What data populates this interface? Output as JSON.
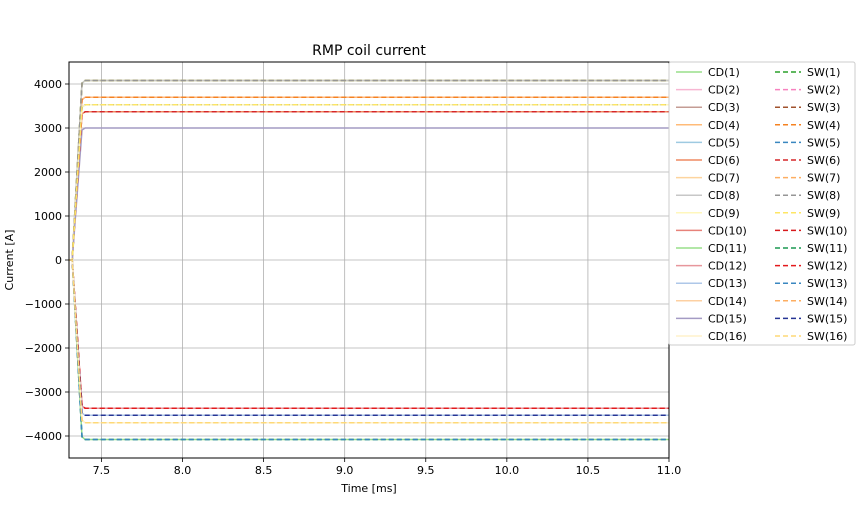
{
  "chart_data": {
    "type": "line",
    "title": "RMP coil current",
    "xlabel": "Time [ms]",
    "ylabel": "Current [A]",
    "xlim": [
      7.3,
      11.0
    ],
    "ylim": [
      -4500,
      4500
    ],
    "xticks": [
      7.5,
      8.0,
      8.5,
      9.0,
      9.5,
      10.0,
      10.5,
      11.0
    ],
    "yticks": [
      -4000,
      -3000,
      -2000,
      -1000,
      0,
      1000,
      2000,
      3000,
      4000
    ],
    "grid": true,
    "legend_position": "right, outside plot, 2 columns",
    "series": [
      {
        "name": "CD(1)",
        "style": "solid",
        "color": "#98df8a",
        "plateau": 4080
      },
      {
        "name": "CD(2)",
        "style": "solid",
        "color": "#f7b6d2",
        "plateau": 3700
      },
      {
        "name": "CD(3)",
        "style": "solid",
        "color": "#c49c94",
        "plateau": 3530
      },
      {
        "name": "CD(4)",
        "style": "solid",
        "color": "#ffbb78",
        "plateau": 3700
      },
      {
        "name": "CD(5)",
        "style": "solid",
        "color": "#9ecae1",
        "plateau": 3530
      },
      {
        "name": "CD(6)",
        "style": "solid",
        "color": "#ef8a62",
        "plateau": 3370
      },
      {
        "name": "CD(7)",
        "style": "solid",
        "color": "#fdd49e",
        "plateau": 4080
      },
      {
        "name": "CD(8)",
        "style": "solid",
        "color": "#c7c7c7",
        "plateau": 4080
      },
      {
        "name": "CD(9)",
        "style": "solid",
        "color": "#fff7bc",
        "plateau": 3530
      },
      {
        "name": "CD(10)",
        "style": "solid",
        "color": "#e7827a",
        "plateau": -3370
      },
      {
        "name": "CD(11)",
        "style": "solid",
        "color": "#98df8a",
        "plateau": -4080
      },
      {
        "name": "CD(12)",
        "style": "solid",
        "color": "#e7969c",
        "plateau": -3370
      },
      {
        "name": "CD(13)",
        "style": "solid",
        "color": "#aec7e8",
        "plateau": -3530
      },
      {
        "name": "CD(14)",
        "style": "solid",
        "color": "#fdd0a2",
        "plateau": -3700
      },
      {
        "name": "CD(15)",
        "style": "solid",
        "color": "#a49bc4",
        "plateau": 3000
      },
      {
        "name": "CD(16)",
        "style": "solid",
        "color": "#fff2cc",
        "plateau": -3700
      },
      {
        "name": "SW(1)",
        "style": "dashed",
        "color": "#2ca02c",
        "plateau": 4080
      },
      {
        "name": "SW(2)",
        "style": "dashed",
        "color": "#f781bf",
        "plateau": 3700
      },
      {
        "name": "SW(3)",
        "style": "dashed",
        "color": "#a0522d",
        "plateau": 3530
      },
      {
        "name": "SW(4)",
        "style": "dashed",
        "color": "#f58220",
        "plateau": 3700
      },
      {
        "name": "SW(5)",
        "style": "dashed",
        "color": "#3a87c0",
        "plateau": 3530
      },
      {
        "name": "SW(6)",
        "style": "dashed",
        "color": "#d62728",
        "plateau": 3370
      },
      {
        "name": "SW(7)",
        "style": "dashed",
        "color": "#fdae61",
        "plateau": 4080
      },
      {
        "name": "SW(8)",
        "style": "dashed",
        "color": "#969696",
        "plateau": 4080
      },
      {
        "name": "SW(9)",
        "style": "dashed",
        "color": "#fee664",
        "plateau": 3530
      },
      {
        "name": "SW(10)",
        "style": "dashed",
        "color": "#d7191c",
        "plateau": -3370
      },
      {
        "name": "SW(11)",
        "style": "dashed",
        "color": "#1a9850",
        "plateau": -4080
      },
      {
        "name": "SW(12)",
        "style": "dashed",
        "color": "#e31a1c",
        "plateau": -3370
      },
      {
        "name": "SW(13)",
        "style": "dashed",
        "color": "#3a87c0",
        "plateau": -4080
      },
      {
        "name": "SW(14)",
        "style": "dashed",
        "color": "#fdae61",
        "plateau": -3700
      },
      {
        "name": "SW(15)",
        "style": "dashed",
        "color": "#253494",
        "plateau": -3530
      },
      {
        "name": "SW(16)",
        "style": "dashed",
        "color": "#fed976",
        "plateau": -3700
      }
    ],
    "ramp": {
      "t_start": 7.32,
      "t_end": 7.38,
      "t_settle": 7.4
    }
  }
}
